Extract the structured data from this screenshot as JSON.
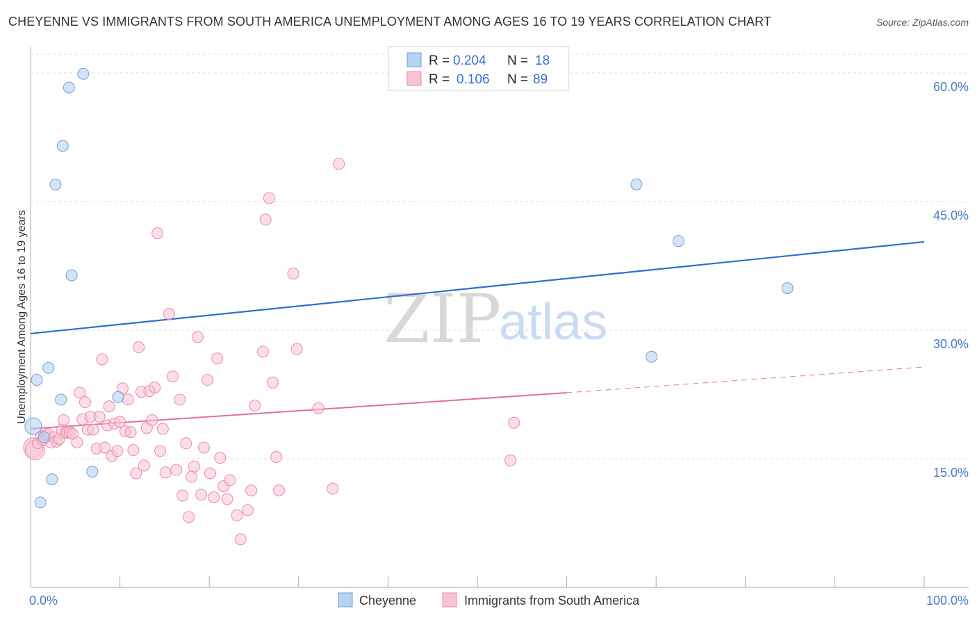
{
  "title": "CHEYENNE VS IMMIGRANTS FROM SOUTH AMERICA UNEMPLOYMENT AMONG AGES 16 TO 19 YEARS CORRELATION CHART",
  "source": "Source: ZipAtlas.com",
  "watermark": {
    "zip": "ZIP",
    "atlas": "atlas"
  },
  "colors": {
    "blue_fill": "#b8d2f2",
    "blue_stroke": "#6f9fd9",
    "blue_line": "#2f6fcc",
    "pink_fill": "#f8c3d4",
    "pink_stroke": "#ea8aaa",
    "pink_line": "#e0709a",
    "axis_label": "#4a78c8",
    "grid": "#dddddd"
  },
  "legend": {
    "rows": [
      {
        "r_label": "R =",
        "r_value": "0.204",
        "n_label": "N =",
        "n_value": "18"
      },
      {
        "r_label": "R =",
        "r_value": "0.106",
        "n_label": "N =",
        "n_value": "89"
      }
    ]
  },
  "chart_data": {
    "type": "scatter",
    "title": "CHEYENNE VS IMMIGRANTS FROM SOUTH AMERICA UNEMPLOYMENT AMONG AGES 16 TO 19 YEARS CORRELATION CHART",
    "xlabel": "",
    "ylabel": "Unemployment Among Ages 16 to 19 years",
    "xlim": [
      0,
      100
    ],
    "ylim": [
      0,
      63
    ],
    "x_tick_labels": [
      "0.0%",
      "100.0%"
    ],
    "y_ticks": [
      15,
      30,
      45,
      60
    ],
    "y_tick_labels": [
      "15.0%",
      "30.0%",
      "45.0%",
      "60.0%"
    ],
    "grid": true,
    "series": [
      {
        "name": "Cheyenne",
        "color": "#b8d2f2",
        "r": 0.204,
        "n": 18,
        "trend": {
          "x": [
            0,
            100
          ],
          "y": [
            29.6,
            40.3
          ]
        },
        "points": [
          [
            0.3,
            18.8
          ],
          [
            0.7,
            24.2
          ],
          [
            1.1,
            9.9
          ],
          [
            2.0,
            25.6
          ],
          [
            2.4,
            12.6
          ],
          [
            2.8,
            47.0
          ],
          [
            3.4,
            21.9
          ],
          [
            3.6,
            51.5
          ],
          [
            4.3,
            58.3
          ],
          [
            4.6,
            36.4
          ],
          [
            5.9,
            59.9
          ],
          [
            6.9,
            13.5
          ],
          [
            9.8,
            22.2
          ],
          [
            67.8,
            47.0
          ],
          [
            69.5,
            26.9
          ],
          [
            72.5,
            40.4
          ],
          [
            84.7,
            34.9
          ],
          [
            1.5,
            17.5
          ]
        ]
      },
      {
        "name": "Immigrants from South America",
        "color": "#f8c3d4",
        "r": 0.106,
        "n": 89,
        "trend": {
          "x": [
            0,
            60
          ],
          "y": [
            18.5,
            22.7
          ]
        },
        "trend_dashed": {
          "x": [
            60,
            100
          ],
          "y": [
            22.7,
            25.7
          ]
        },
        "points": [
          [
            0.3,
            16.3
          ],
          [
            0.5,
            16.0
          ],
          [
            0.8,
            16.8
          ],
          [
            1.2,
            17.6
          ],
          [
            1.4,
            17.2
          ],
          [
            1.7,
            17.8
          ],
          [
            2.0,
            17.9
          ],
          [
            2.3,
            16.9
          ],
          [
            2.6,
            17.5
          ],
          [
            2.9,
            17.0
          ],
          [
            3.2,
            17.3
          ],
          [
            3.5,
            18.4
          ],
          [
            3.7,
            19.5
          ],
          [
            3.9,
            18.0
          ],
          [
            4.1,
            18.1
          ],
          [
            4.4,
            18.1
          ],
          [
            4.7,
            17.9
          ],
          [
            5.2,
            16.9
          ],
          [
            5.5,
            22.7
          ],
          [
            5.8,
            19.6
          ],
          [
            6.1,
            21.6
          ],
          [
            6.4,
            18.4
          ],
          [
            6.7,
            19.9
          ],
          [
            7.0,
            18.4
          ],
          [
            7.4,
            16.2
          ],
          [
            7.7,
            19.9
          ],
          [
            8.0,
            26.6
          ],
          [
            8.3,
            16.3
          ],
          [
            8.6,
            18.9
          ],
          [
            8.8,
            21.1
          ],
          [
            9.1,
            15.3
          ],
          [
            9.4,
            19.1
          ],
          [
            9.7,
            15.9
          ],
          [
            10.0,
            19.3
          ],
          [
            10.3,
            23.2
          ],
          [
            10.6,
            18.2
          ],
          [
            10.9,
            21.9
          ],
          [
            11.2,
            18.1
          ],
          [
            11.5,
            16.0
          ],
          [
            11.8,
            13.3
          ],
          [
            12.1,
            28.0
          ],
          [
            12.4,
            22.8
          ],
          [
            12.7,
            14.2
          ],
          [
            13.0,
            18.6
          ],
          [
            13.3,
            22.9
          ],
          [
            13.6,
            19.5
          ],
          [
            13.9,
            23.3
          ],
          [
            14.2,
            41.3
          ],
          [
            14.5,
            15.9
          ],
          [
            14.8,
            18.5
          ],
          [
            15.1,
            13.4
          ],
          [
            15.5,
            31.9
          ],
          [
            15.9,
            24.6
          ],
          [
            16.3,
            13.7
          ],
          [
            16.7,
            21.9
          ],
          [
            17.0,
            10.7
          ],
          [
            17.4,
            16.8
          ],
          [
            17.7,
            8.2
          ],
          [
            18.0,
            12.9
          ],
          [
            18.3,
            14.1
          ],
          [
            18.7,
            29.2
          ],
          [
            19.1,
            10.8
          ],
          [
            19.4,
            16.3
          ],
          [
            19.8,
            24.2
          ],
          [
            20.1,
            13.3
          ],
          [
            20.5,
            10.5
          ],
          [
            20.9,
            26.7
          ],
          [
            21.2,
            15.1
          ],
          [
            21.6,
            11.8
          ],
          [
            22.0,
            10.3
          ],
          [
            22.3,
            12.5
          ],
          [
            23.1,
            8.4
          ],
          [
            23.5,
            5.6
          ],
          [
            24.3,
            9.0
          ],
          [
            24.7,
            11.3
          ],
          [
            25.1,
            21.2
          ],
          [
            26.0,
            27.5
          ],
          [
            26.3,
            42.9
          ],
          [
            26.7,
            45.4
          ],
          [
            27.1,
            23.9
          ],
          [
            27.5,
            15.2
          ],
          [
            27.8,
            11.3
          ],
          [
            29.4,
            36.6
          ],
          [
            29.8,
            27.8
          ],
          [
            32.2,
            20.9
          ],
          [
            33.8,
            11.5
          ],
          [
            34.5,
            49.4
          ],
          [
            53.7,
            14.8
          ],
          [
            54.1,
            19.2
          ]
        ]
      }
    ],
    "trend_extra_point": [
      54.3,
      14.7
    ]
  },
  "bottom_legend": {
    "series_1": "Cheyenne",
    "series_2": "Immigrants from South America"
  }
}
